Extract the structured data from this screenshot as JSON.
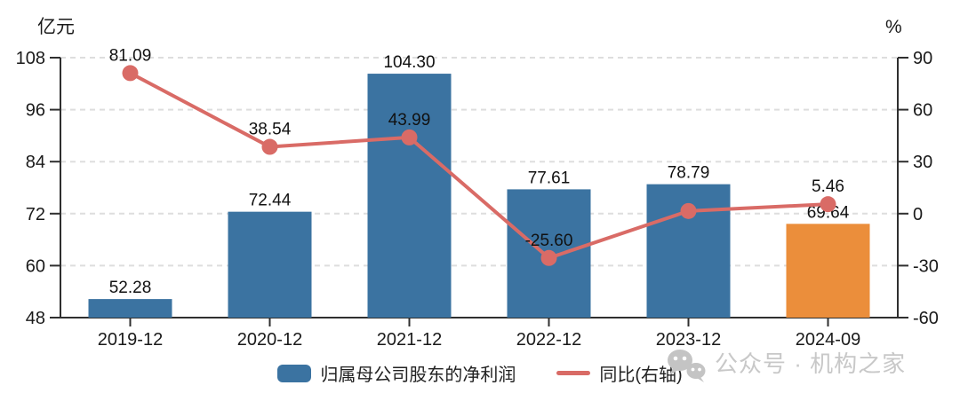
{
  "chart_data": {
    "type": "bar+line",
    "categories": [
      "2019-12",
      "2020-12",
      "2021-12",
      "2022-12",
      "2023-12",
      "2024-09"
    ],
    "series": [
      {
        "name": "归属母公司股东的净利润",
        "type": "bar",
        "axis": "left",
        "values": [
          52.28,
          72.44,
          104.3,
          77.61,
          78.79,
          69.64
        ],
        "labels": [
          "52.28",
          "72.44",
          "104.30",
          "77.61",
          "78.79",
          "69.64"
        ],
        "bar_colors": [
          "#3b73a1",
          "#3b73a1",
          "#3b73a1",
          "#3b73a1",
          "#3b73a1",
          "#eb8e3b"
        ]
      },
      {
        "name": "同比(右轴)",
        "type": "line",
        "axis": "right",
        "values": [
          81.09,
          38.54,
          43.99,
          -25.6,
          1.52,
          5.46
        ],
        "labels": [
          "81.09",
          "38.54",
          "43.99",
          "-25.60",
          "",
          "5.46"
        ],
        "color": "#d96b66"
      }
    ],
    "left_axis": {
      "unit": "亿元",
      "min": 48,
      "max": 108,
      "ticks": [
        108,
        96,
        84,
        72,
        60,
        48
      ]
    },
    "right_axis": {
      "unit": "%",
      "min": -60,
      "max": 90,
      "ticks": [
        90,
        60,
        30,
        0,
        -30,
        -60
      ]
    },
    "grid": "dashed-horizontal",
    "legend_position": "bottom-center"
  },
  "legend": {
    "bar_label": "归属母公司股东的净利润",
    "line_label": "同比(右轴)"
  },
  "watermark": {
    "icon": "wechat-icon",
    "text": "公众号 · 机构之家"
  },
  "colors": {
    "bar_blue": "#3b73a1",
    "bar_orange": "#eb8e3b",
    "line_red": "#d96b66",
    "grid": "#dedede",
    "axis": "#2f2f2f",
    "label_text": "#111111",
    "watermark": "#c8c8c8"
  }
}
